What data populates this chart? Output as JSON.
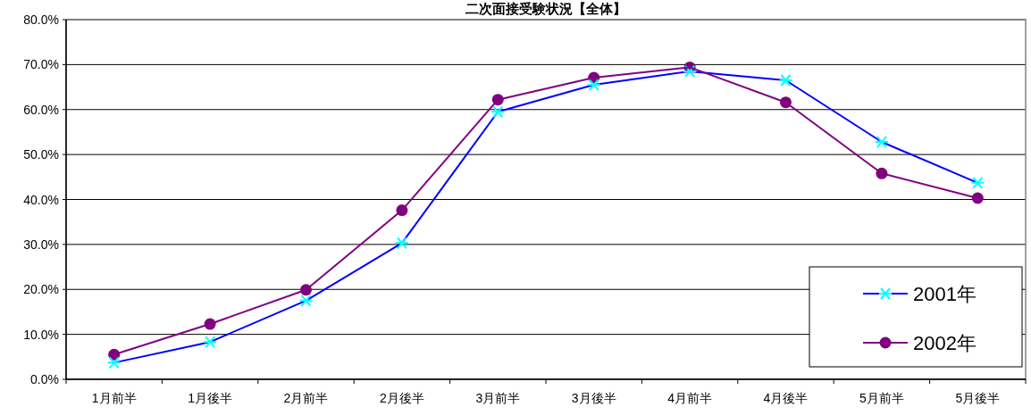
{
  "chart_data": {
    "type": "line",
    "title": "二次面接受験状況【全体】",
    "categories": [
      "1月前半",
      "1月後半",
      "2月前半",
      "2月後半",
      "3月前半",
      "3月後半",
      "4月前半",
      "4月後半",
      "5月前半",
      "5月後半"
    ],
    "series": [
      {
        "name": "2001年",
        "color": "#0000ff",
        "colors": [
          "#00ffff",
          "#00ffff",
          "#00ffff",
          "#00ffff",
          "#00ffff",
          "#00ffff",
          "#00ffff",
          "#00ffff",
          "#00ffff",
          "#00ffff"
        ],
        "marker": "cross",
        "values": [
          3.7,
          8.3,
          17.5,
          30.3,
          59.5,
          65.5,
          68.5,
          66.5,
          52.8,
          43.7
        ]
      },
      {
        "name": "2002年",
        "color": "#800080",
        "marker": "circle",
        "values": [
          5.5,
          12.3,
          19.9,
          37.6,
          62.2,
          67.1,
          69.4,
          61.6,
          45.8,
          40.3
        ]
      }
    ],
    "ylim": [
      0,
      80
    ],
    "yticks": [
      {
        "value": 0,
        "label": "0.0%"
      },
      {
        "value": 10,
        "label": "10.0%"
      },
      {
        "value": 20,
        "label": "20.0%"
      },
      {
        "value": 30,
        "label": "30.0%"
      },
      {
        "value": 40,
        "label": "40.0%"
      },
      {
        "value": 50,
        "label": "50.0%"
      },
      {
        "value": 60,
        "label": "60.0%"
      },
      {
        "value": 70,
        "label": "70.0%"
      },
      {
        "value": 80,
        "label": "80.0%"
      }
    ],
    "grid": "y",
    "legend": "bottom right"
  }
}
